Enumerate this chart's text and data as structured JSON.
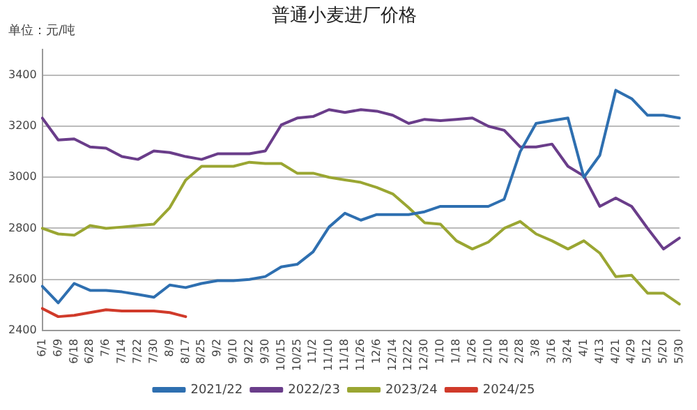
{
  "chart_data": {
    "type": "line",
    "title": "普通小麦进厂价格",
    "ylabel": "单位：元/吨",
    "categories": [
      "6/1",
      "6/9",
      "6/18",
      "6/28",
      "7/6",
      "7/14",
      "7/22",
      "7/30",
      "8/9",
      "8/17",
      "8/25",
      "9/2",
      "9/10",
      "9/22",
      "9/30",
      "10/15",
      "10/25",
      "11/2",
      "11/10",
      "11/18",
      "11/26",
      "12/6",
      "12/14",
      "12/22",
      "12/30",
      "1/10",
      "1/18",
      "1/26",
      "2/10",
      "2/18",
      "2/28",
      "3/8",
      "3/16",
      "3/24",
      "4/1",
      "4/13",
      "4/21",
      "4/29",
      "5/12",
      "5/20",
      "5/30"
    ],
    "series": [
      {
        "name": "2021/22",
        "color": "#2e6fb0",
        "values": [
          2573,
          2508,
          2584,
          2557,
          2557,
          2551,
          2541,
          2530,
          2578,
          2568,
          2584,
          2595,
          2595,
          2600,
          2611,
          2649,
          2659,
          2708,
          2805,
          2859,
          2832,
          2854,
          2854,
          2854,
          2865,
          2886,
          2886,
          2886,
          2886,
          2914,
          3100,
          3211,
          3222,
          3232,
          3000,
          3086,
          3341,
          3308,
          3243,
          3243,
          3232
        ]
      },
      {
        "name": "2022/23",
        "color": "#6a3d8a",
        "values": [
          3232,
          3146,
          3150,
          3119,
          3114,
          3081,
          3070,
          3103,
          3097,
          3081,
          3070,
          3092,
          3092,
          3092,
          3103,
          3205,
          3232,
          3238,
          3265,
          3254,
          3265,
          3259,
          3243,
          3211,
          3227,
          3222,
          3227,
          3232,
          3200,
          3184,
          3119,
          3119,
          3130,
          3043,
          3005,
          2886,
          2919,
          2886,
          2800,
          2719,
          2762
        ]
      },
      {
        "name": "2023/24",
        "color": "#9aa632",
        "values": [
          2800,
          2778,
          2773,
          2811,
          2800,
          2805,
          2811,
          2816,
          2881,
          2989,
          3043,
          3043,
          3043,
          3059,
          3054,
          3054,
          3016,
          3016,
          3000,
          2990,
          2980,
          2960,
          2935,
          2881,
          2822,
          2816,
          2751,
          2719,
          2746,
          2800,
          2827,
          2778,
          2751,
          2719,
          2751,
          2703,
          2611,
          2616,
          2546,
          2546,
          2503
        ]
      },
      {
        "name": "2024/25",
        "color": "#d03a2a",
        "values": [
          2486,
          2454,
          2459,
          2470,
          2481,
          2476,
          2476,
          2476,
          2470,
          2454,
          null,
          null,
          null,
          null,
          null,
          null,
          null,
          null,
          null,
          null,
          null,
          null,
          null,
          null,
          null,
          null,
          null,
          null,
          null,
          null,
          null,
          null,
          null,
          null,
          null,
          null,
          null,
          null,
          null,
          null,
          null
        ]
      }
    ],
    "ylim": [
      2400,
      3500
    ],
    "yticks": [
      2400,
      2600,
      2800,
      3000,
      3200,
      3400
    ],
    "grid": "y",
    "legend": "bottom",
    "marker": "none",
    "line_style": "solid"
  }
}
